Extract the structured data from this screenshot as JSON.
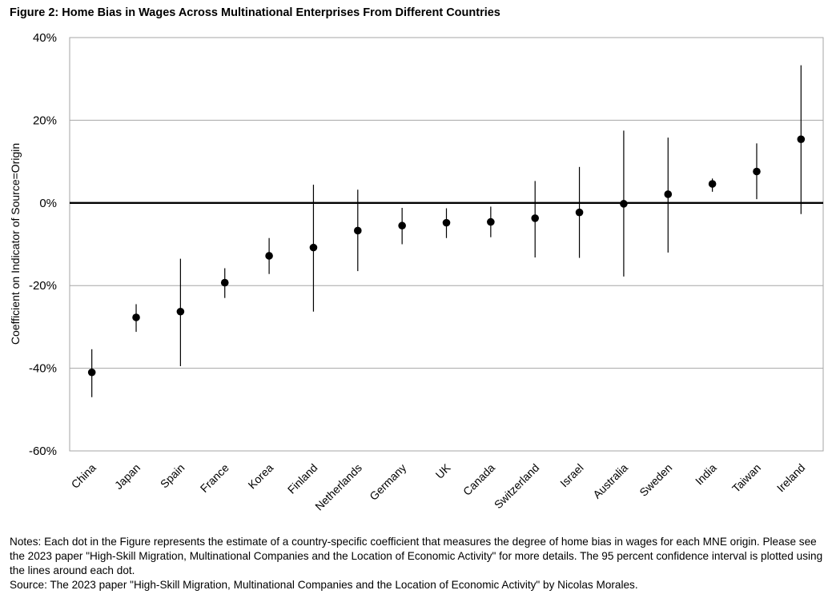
{
  "figure": {
    "title": "Figure 2: Home Bias in Wages Across Multinational Enterprises From Different Countries"
  },
  "chart_data": {
    "type": "scatter",
    "subtype": "point-with-error-bars",
    "title": "Figure 2: Home Bias in Wages Across Multinational Enterprises From Different Countries",
    "xlabel": "",
    "ylabel": "Coefficient on Indicator of Source=Origin",
    "ylim": [
      -0.6,
      0.4
    ],
    "yticks": [
      -0.6,
      -0.4,
      -0.2,
      0.0,
      0.2,
      0.4
    ],
    "ytick_labels": [
      "-60%",
      "-40%",
      "-20%",
      "0%",
      "20%",
      "40%"
    ],
    "grid": "horizontal",
    "zero_line": true,
    "legend": "none",
    "marker_color": "#000000",
    "categories": [
      "China",
      "Japan",
      "Spain",
      "France",
      "Korea",
      "Finland",
      "Netherlands",
      "Germany",
      "UK",
      "Canada",
      "Switzerland",
      "Israel",
      "Australia",
      "Sweden",
      "India",
      "Taiwan",
      "Ireland"
    ],
    "values": [
      -0.41,
      -0.277,
      -0.263,
      -0.193,
      -0.128,
      -0.108,
      -0.067,
      -0.055,
      -0.048,
      -0.046,
      -0.037,
      -0.023,
      -0.002,
      0.021,
      0.046,
      0.076,
      0.154
    ],
    "ci_lower": [
      -0.47,
      -0.312,
      -0.395,
      -0.23,
      -0.172,
      -0.263,
      -0.165,
      -0.1,
      -0.085,
      -0.083,
      -0.132,
      -0.133,
      -0.178,
      -0.12,
      0.027,
      0.009,
      -0.027
    ],
    "ci_upper": [
      -0.354,
      -0.245,
      -0.135,
      -0.158,
      -0.085,
      0.044,
      0.032,
      -0.012,
      -0.013,
      -0.009,
      0.053,
      0.087,
      0.175,
      0.158,
      0.059,
      0.144,
      0.333
    ]
  },
  "notes": {
    "text": "Notes: Each dot in the Figure represents the estimate of a country-specific coefficient that measures the degree of home bias in wages for each MNE origin. Please see the 2023 paper \"High-Skill Migration, Multinational Companies and the Location of Economic Activity\" for more details. The 95 percent confidence interval is plotted using the lines around each dot.",
    "source": "Source: The 2023 paper \"High-Skill Migration, Multinational Companies and the Location of Economic Activity\" by Nicolas Morales."
  }
}
